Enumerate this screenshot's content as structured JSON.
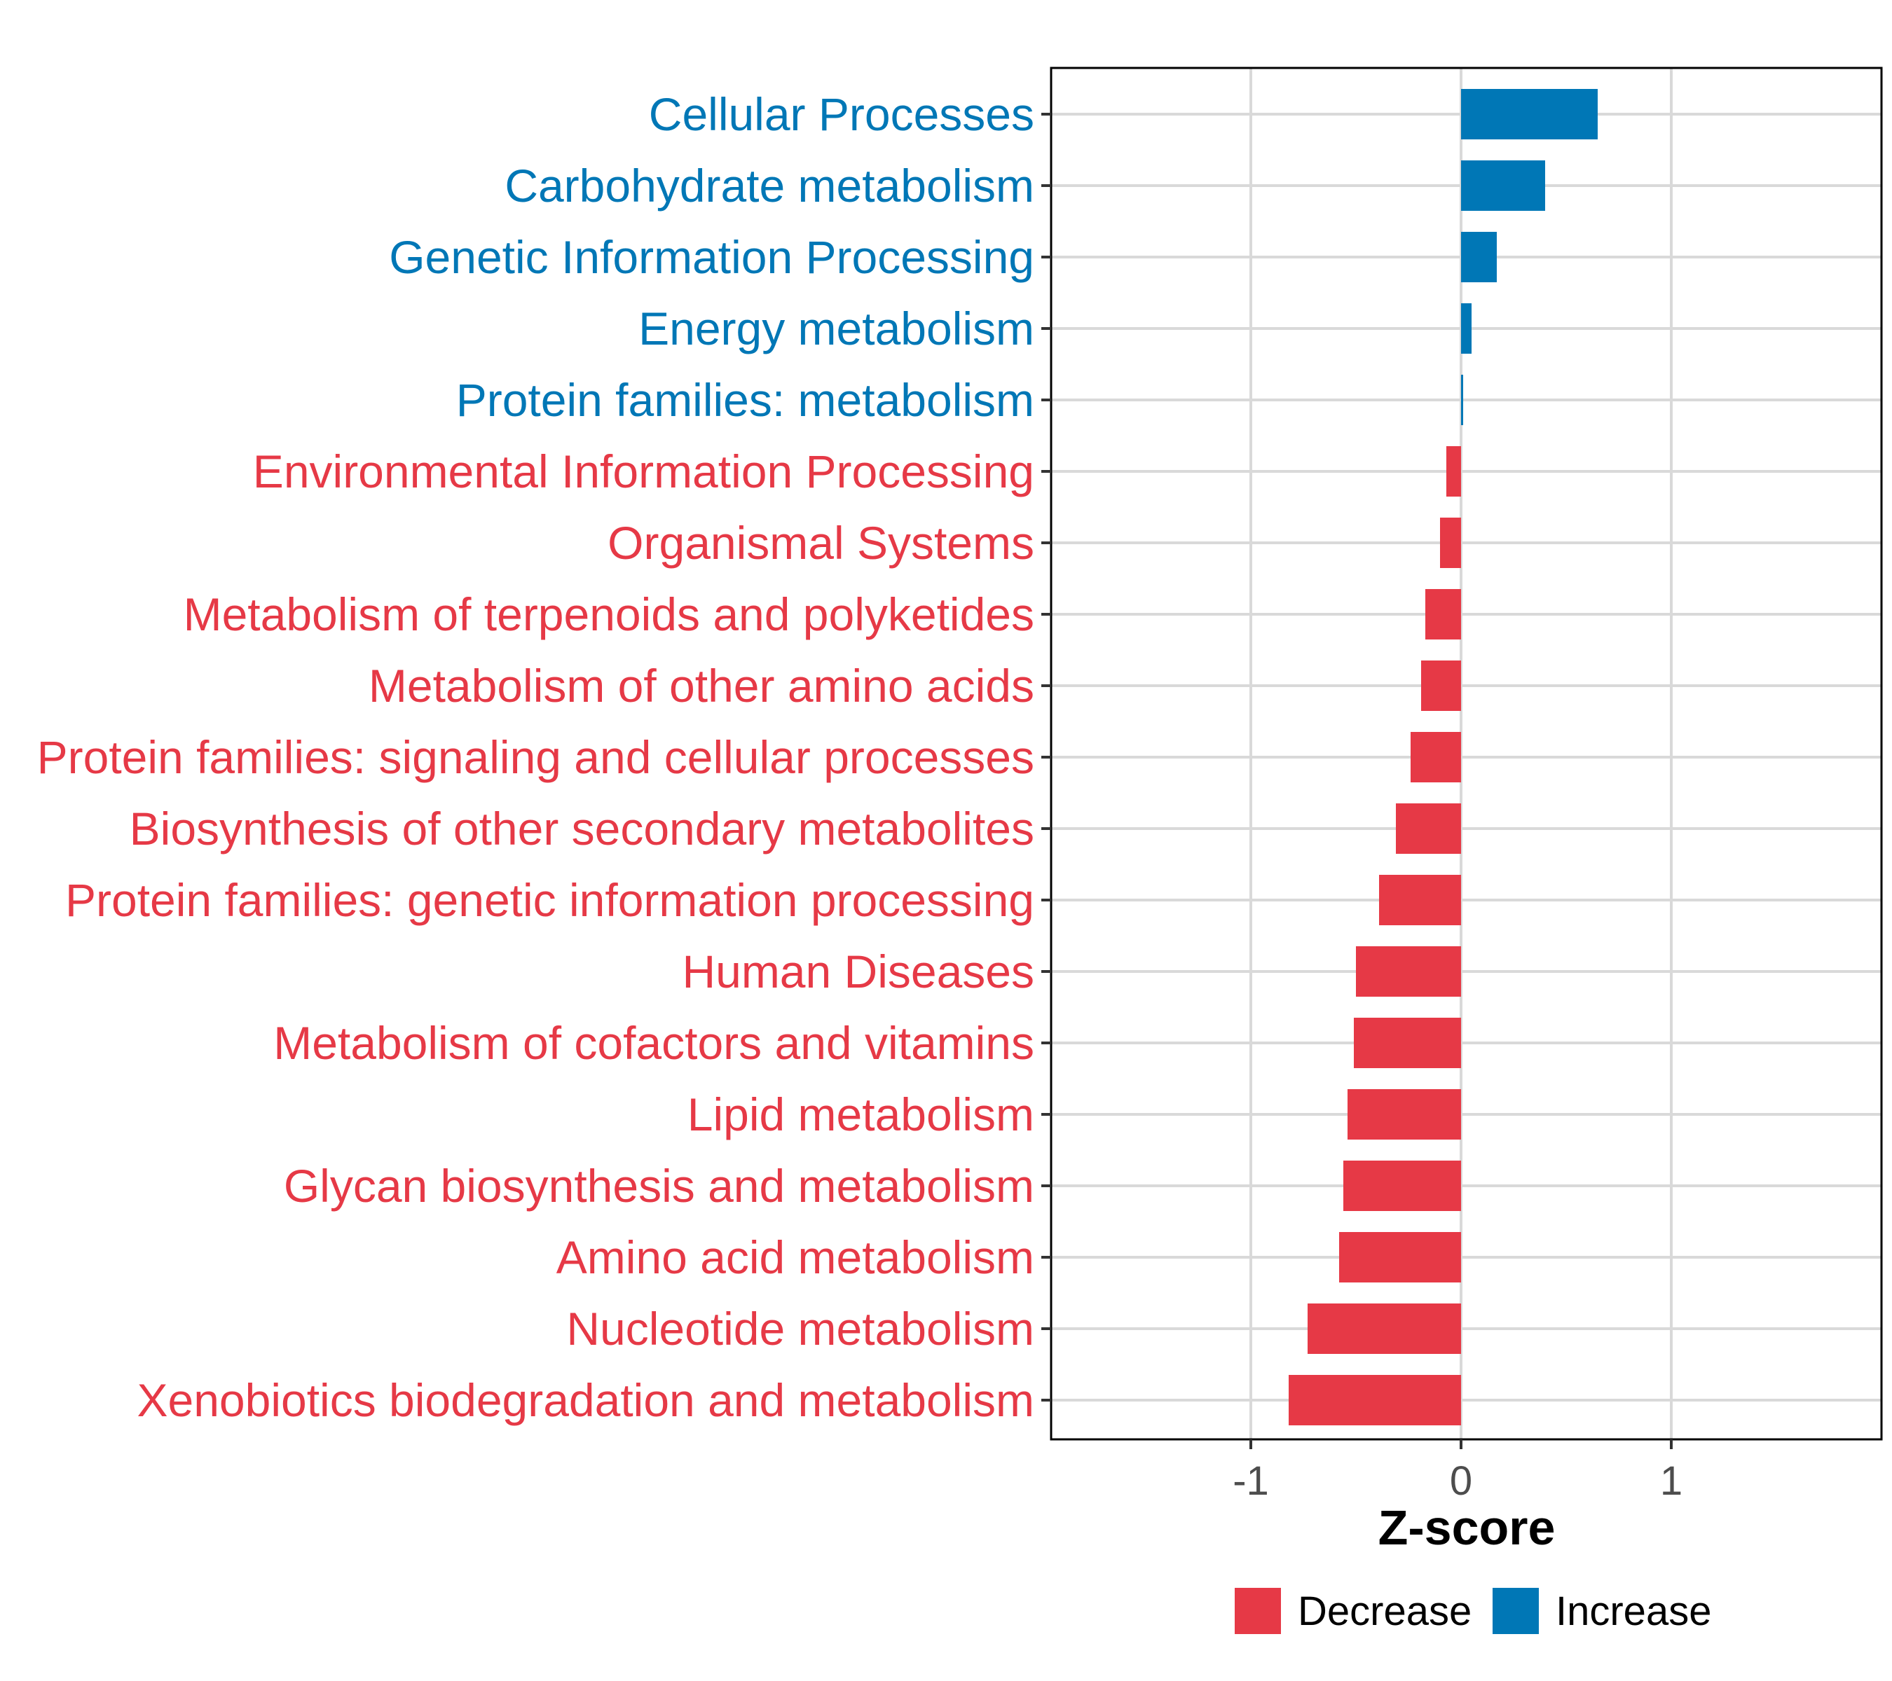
{
  "colors": {
    "decrease": "#e63946",
    "increase": "#0077b6",
    "grid": "#d9d9d9",
    "panel_border": "#000000"
  },
  "chart_data": {
    "type": "bar",
    "orientation": "horizontal",
    "xlabel": "Z-score",
    "xlim": [
      -1.95,
      2.0
    ],
    "xticks": [
      -1,
      0,
      1
    ],
    "xtick_labels": [
      "-1",
      "0",
      "1"
    ],
    "grid": true,
    "legend_position": "bottom",
    "legend": [
      {
        "key": "decrease",
        "label": "Decrease"
      },
      {
        "key": "increase",
        "label": "Increase"
      }
    ],
    "categories": [
      "Cellular Processes",
      "Carbohydrate metabolism",
      "Genetic Information Processing",
      "Energy metabolism",
      "Protein families: metabolism",
      "Environmental Information Processing",
      "Organismal Systems",
      "Metabolism of terpenoids and polyketides",
      "Metabolism of other amino acids",
      "Protein families: signaling and cellular processes",
      "Biosynthesis of other secondary metabolites",
      "Protein families: genetic information processing",
      "Human Diseases",
      "Metabolism of cofactors and vitamins",
      "Lipid metabolism",
      "Glycan biosynthesis and metabolism",
      "Amino acid metabolism",
      "Nucleotide metabolism",
      "Xenobiotics biodegradation and metabolism"
    ],
    "values": [
      0.65,
      0.4,
      0.17,
      0.05,
      0.01,
      -0.07,
      -0.1,
      -0.17,
      -0.19,
      -0.24,
      -0.31,
      -0.39,
      -0.5,
      -0.51,
      -0.54,
      -0.56,
      -0.58,
      -0.73,
      -0.82
    ],
    "groups": [
      "increase",
      "increase",
      "increase",
      "increase",
      "increase",
      "decrease",
      "decrease",
      "decrease",
      "decrease",
      "decrease",
      "decrease",
      "decrease",
      "decrease",
      "decrease",
      "decrease",
      "decrease",
      "decrease",
      "decrease",
      "decrease"
    ]
  }
}
